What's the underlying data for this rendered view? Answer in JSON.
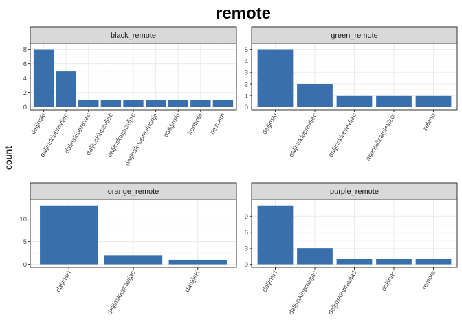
{
  "figure": {
    "title": "remote",
    "ylabel": "count"
  },
  "colors": {
    "bar": "#3a6fad",
    "strip_bg": "#d9d9d9",
    "panel_border": "#333333",
    "grid_major": "#ebebeb",
    "grid_minor": "#f5f5f5"
  },
  "chart_data": [
    {
      "type": "bar",
      "title": "black_remote",
      "categories": [
        "daljinski",
        "daljinskiupravljac",
        "dalinskiupravac",
        "daljinskiupavljač",
        "daljinskiupravljac",
        "daljinskoupravlhanje",
        "dalkjinski",
        "kontrola",
        "neznam"
      ],
      "values": [
        8,
        5,
        1,
        1,
        1,
        1,
        1,
        1,
        1
      ],
      "ylim": [
        0,
        8.4
      ],
      "yticks": [
        0,
        2,
        4,
        6,
        8
      ]
    },
    {
      "type": "bar",
      "title": "green_remote",
      "categories": [
        "daljinski",
        "daljinskiupravljac",
        "daljinskiuprevljac",
        "mjenjačzatelevizor",
        "zeleno"
      ],
      "values": [
        5,
        2,
        1,
        1,
        1
      ],
      "ylim": [
        0,
        5.25
      ],
      "yticks": [
        0,
        1,
        2,
        3,
        4,
        5
      ]
    },
    {
      "type": "bar",
      "title": "orange_remote",
      "categories": [
        "daljinski",
        "daljinskiupravljač",
        "danljiski"
      ],
      "values": [
        13,
        2,
        1
      ],
      "ylim": [
        0,
        13.65
      ],
      "yticks": [
        0,
        5,
        10
      ]
    },
    {
      "type": "bar",
      "title": "purple_remote",
      "categories": [
        "daljinski",
        "daljinskiupravljac",
        "daljinskiupravljač",
        "daljinac",
        "remote"
      ],
      "values": [
        11,
        3,
        1,
        1,
        1
      ],
      "ylim": [
        0,
        11.55
      ],
      "yticks": [
        0,
        3,
        6,
        9
      ]
    }
  ]
}
